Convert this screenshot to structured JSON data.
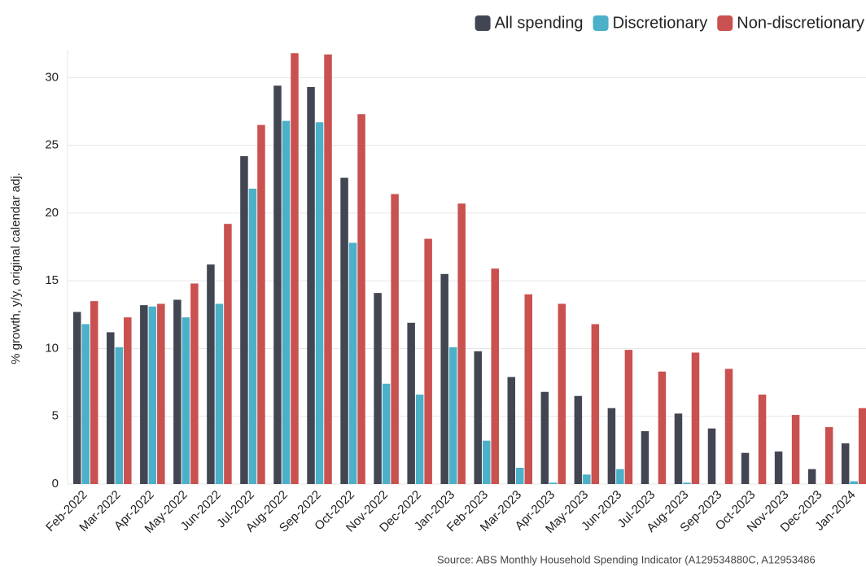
{
  "chart_data": {
    "type": "bar",
    "y_label": "% growth, y/y, original calendar adj.",
    "source": "Source: ABS Monthly Household Spending Indicator (A129534880C, A12953486",
    "categories": [
      "Feb-2022",
      "Mar-2022",
      "Apr-2022",
      "May-2022",
      "Jun-2022",
      "Jul-2022",
      "Aug-2022",
      "Sep-2022",
      "Oct-2022",
      "Nov-2022",
      "Dec-2022",
      "Jan-2023",
      "Feb-2023",
      "Mar-2023",
      "Apr-2023",
      "May-2023",
      "Jun-2023",
      "Jul-2023",
      "Aug-2023",
      "Sep-2023",
      "Oct-2023",
      "Nov-2023",
      "Dec-2023",
      "Jan-2024"
    ],
    "series": [
      {
        "name": "All spending",
        "color": "#424652",
        "values": [
          12.7,
          11.2,
          13.2,
          13.6,
          16.2,
          24.2,
          29.4,
          29.3,
          22.6,
          14.1,
          11.9,
          15.5,
          9.8,
          7.9,
          6.8,
          6.5,
          5.6,
          3.9,
          5.2,
          4.1,
          2.3,
          2.4,
          1.1,
          3.0
        ]
      },
      {
        "name": "Discretionary",
        "color": "#4bb0c8",
        "values": [
          11.8,
          10.1,
          13.1,
          12.3,
          13.3,
          21.8,
          26.8,
          26.7,
          17.8,
          7.4,
          6.6,
          10.1,
          3.2,
          1.2,
          0.1,
          0.7,
          1.1,
          0,
          0.1,
          0,
          0,
          0,
          0,
          0.2
        ]
      },
      {
        "name": "Non-discretionary",
        "color": "#c9514f",
        "values": [
          13.5,
          12.3,
          13.3,
          14.8,
          19.2,
          26.5,
          31.8,
          31.7,
          27.3,
          21.4,
          18.1,
          20.7,
          15.9,
          14.0,
          13.3,
          11.8,
          9.9,
          8.3,
          9.7,
          8.5,
          6.6,
          5.1,
          4.2,
          5.6
        ]
      }
    ],
    "ylim": [
      0,
      32
    ],
    "yticks": [
      0,
      5,
      10,
      15,
      20,
      25,
      30
    ],
    "grid": true,
    "legend": "top-right"
  }
}
